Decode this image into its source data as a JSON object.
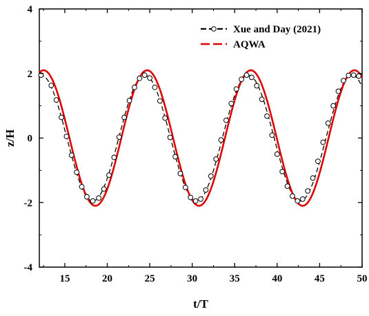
{
  "chart_data": {
    "type": "line",
    "xlabel": "t/T",
    "ylabel": "z/H",
    "xlim": [
      12,
      50
    ],
    "ylim": [
      -4,
      4
    ],
    "x_ticks": [
      15,
      20,
      25,
      30,
      35,
      40,
      45,
      50
    ],
    "y_ticks": [
      -4,
      -2,
      0,
      2,
      4
    ],
    "grid": false,
    "legend_position": "top-right",
    "series": [
      {
        "name": "Xue and Day (2021)",
        "style": "dashed line with open circle markers",
        "color": "#000000",
        "amplitude": 1.95,
        "period": 12.2,
        "peak_x": 12.2,
        "x": [
          12.2,
          13.4,
          14.0,
          14.6,
          15.2,
          15.8,
          16.4,
          17.0,
          17.6,
          18.3,
          19.0,
          19.6,
          20.2,
          20.8,
          21.4,
          22.0,
          22.6,
          23.2,
          23.8,
          24.4,
          25.0,
          25.6,
          26.2,
          26.8,
          27.4,
          28.0,
          28.6,
          29.2,
          29.8,
          30.4,
          31.0,
          31.6,
          32.2,
          32.8,
          33.4,
          34.0,
          34.6,
          35.2,
          35.8,
          36.4,
          37.0,
          37.6,
          38.2,
          38.8,
          39.4,
          40.0,
          40.6,
          41.2,
          41.8,
          42.4,
          43.0,
          43.6,
          44.2,
          44.8,
          45.4,
          46.0,
          46.6,
          47.2,
          47.8,
          48.4,
          49.0,
          49.6
        ],
        "y": [
          1.95,
          1.63,
          1.18,
          0.64,
          0.05,
          -0.53,
          -1.06,
          -1.51,
          -1.82,
          -1.95,
          -1.86,
          -1.58,
          -1.15,
          -0.6,
          0.03,
          0.64,
          1.16,
          1.57,
          1.85,
          1.95,
          1.86,
          1.57,
          1.15,
          0.62,
          0.02,
          -0.58,
          -1.1,
          -1.53,
          -1.84,
          -1.95,
          -1.89,
          -1.61,
          -1.18,
          -0.65,
          -0.06,
          0.55,
          1.07,
          1.52,
          1.82,
          1.95,
          1.88,
          1.62,
          1.2,
          0.68,
          0.09,
          -0.5,
          -1.04,
          -1.49,
          -1.8,
          -1.95,
          -1.89,
          -1.64,
          -1.24,
          -0.72,
          -0.13,
          0.46,
          1.0,
          1.45,
          1.78,
          1.94,
          1.95,
          1.92
        ]
      },
      {
        "name": "AQWA",
        "style": "solid line",
        "color": "#e00000",
        "amplitude": 2.1,
        "period": 12.2,
        "peak_x": 12.5
      }
    ]
  }
}
